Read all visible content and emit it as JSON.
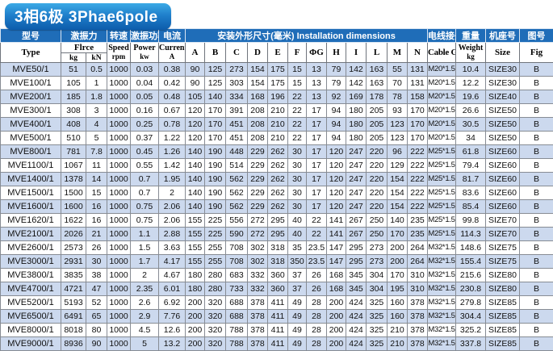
{
  "title": "3相6极 3Phae6pole",
  "colors": {
    "header_blue": "#1f6db8",
    "row_alt_blue": "#ccd9ee",
    "title_gradient_top": "#3caae6",
    "title_gradient_bottom": "#0d5cab",
    "header_text": "#ffffff",
    "body_text": "#101010"
  },
  "table": {
    "header_cn": {
      "model": "型号",
      "force": "激振力",
      "speed": "转速",
      "power": "激振功率",
      "current": "电流",
      "dimensions": "安装外形尺寸(毫米) Installation dimensions",
      "cable_gland": "电线接头",
      "weight": "重量",
      "size": "机座号",
      "fig": "图号"
    },
    "header_en": {
      "model": "Type",
      "force": "Flrce",
      "force_unit_kg": "kg",
      "force_unit_kn": "kN",
      "speed_label": "Speed",
      "speed_unit": "rpm",
      "power_label": "Power",
      "power_unit": "kw",
      "current_label": "Current",
      "current_unit": "A",
      "dim_letters": [
        "A",
        "B",
        "C",
        "D",
        "E",
        "F",
        "ΦG",
        "H",
        "I",
        "L",
        "M",
        "N"
      ],
      "cable_gland": "Cable Gland",
      "weight_label": "Weight",
      "weight_unit": "kg",
      "size": "Size",
      "fig": "Fig"
    },
    "rows": [
      [
        "MVE50/1",
        "51",
        "0.5",
        "1000",
        "0.03",
        "0.38",
        "90",
        "125",
        "273",
        "154",
        "175",
        "15",
        "13",
        "79",
        "142",
        "163",
        "55",
        "131",
        "M20*1.5",
        "10.4",
        "SIZE30",
        "B"
      ],
      [
        "MVE100/1",
        "105",
        "1",
        "1000",
        "0.04",
        "0.42",
        "90",
        "125",
        "303",
        "154",
        "175",
        "15",
        "13",
        "79",
        "142",
        "163",
        "70",
        "131",
        "M20*1.5",
        "12.2",
        "SIZE30",
        "B"
      ],
      [
        "MVE200/1",
        "185",
        "1.8",
        "1000",
        "0.05",
        "0.48",
        "105",
        "140",
        "334",
        "168",
        "196",
        "22",
        "13",
        "92",
        "169",
        "178",
        "78",
        "158",
        "M20*1.5",
        "19.6",
        "SIZE40",
        "B"
      ],
      [
        "MVE300/1",
        "308",
        "3",
        "1000",
        "0.16",
        "0.67",
        "120",
        "170",
        "391",
        "208",
        "210",
        "22",
        "17",
        "94",
        "180",
        "205",
        "93",
        "170",
        "M20*1.5",
        "26.6",
        "SIZE50",
        "B"
      ],
      [
        "MVE400/1",
        "408",
        "4",
        "1000",
        "0.25",
        "0.78",
        "120",
        "170",
        "451",
        "208",
        "210",
        "22",
        "17",
        "94",
        "180",
        "205",
        "123",
        "170",
        "M20*1.5",
        "30.5",
        "SIZE50",
        "B"
      ],
      [
        "MVE500/1",
        "510",
        "5",
        "1000",
        "0.37",
        "1.22",
        "120",
        "170",
        "451",
        "208",
        "210",
        "22",
        "17",
        "94",
        "180",
        "205",
        "123",
        "170",
        "M20*1.5",
        "34",
        "SIZE50",
        "B"
      ],
      [
        "MVE800/1",
        "781",
        "7.8",
        "1000",
        "0.45",
        "1.26",
        "140",
        "190",
        "448",
        "229",
        "262",
        "30",
        "17",
        "120",
        "247",
        "220",
        "96",
        "222",
        "M25*1.5",
        "61.8",
        "SIZE60",
        "B"
      ],
      [
        "MVE1100/1",
        "1067",
        "11",
        "1000",
        "0.55",
        "1.42",
        "140",
        "190",
        "514",
        "229",
        "262",
        "30",
        "17",
        "120",
        "247",
        "220",
        "129",
        "222",
        "M25*1.5",
        "79.4",
        "SIZE60",
        "B"
      ],
      [
        "MVE1400/1",
        "1378",
        "14",
        "1000",
        "0.7",
        "1.95",
        "140",
        "190",
        "562",
        "229",
        "262",
        "30",
        "17",
        "120",
        "247",
        "220",
        "154",
        "222",
        "M25*1.5",
        "81.7",
        "SIZE60",
        "B"
      ],
      [
        "MVE1500/1",
        "1500",
        "15",
        "1000",
        "0.7",
        "2",
        "140",
        "190",
        "562",
        "229",
        "262",
        "30",
        "17",
        "120",
        "247",
        "220",
        "154",
        "222",
        "M25*1.5",
        "83.6",
        "SIZE60",
        "B"
      ],
      [
        "MVE1600/1",
        "1600",
        "16",
        "1000",
        "0.75",
        "2.06",
        "140",
        "190",
        "562",
        "229",
        "262",
        "30",
        "17",
        "120",
        "247",
        "220",
        "154",
        "222",
        "M25*1.5",
        "85.4",
        "SIZE60",
        "B"
      ],
      [
        "MVE1620/1",
        "1622",
        "16",
        "1000",
        "0.75",
        "2.06",
        "155",
        "225",
        "556",
        "272",
        "295",
        "40",
        "22",
        "141",
        "267",
        "250",
        "140",
        "235",
        "M25*1.5",
        "99.8",
        "SIZE70",
        "B"
      ],
      [
        "MVE2100/1",
        "2026",
        "21",
        "1000",
        "1.1",
        "2.88",
        "155",
        "225",
        "590",
        "272",
        "295",
        "40",
        "22",
        "141",
        "267",
        "250",
        "170",
        "235",
        "M25*1.5",
        "114.3",
        "SIZE70",
        "B"
      ],
      [
        "MVE2600/1",
        "2573",
        "26",
        "1000",
        "1.5",
        "3.63",
        "155",
        "255",
        "708",
        "302",
        "318",
        "35",
        "23.5",
        "147",
        "295",
        "273",
        "200",
        "264",
        "M32*1.5",
        "148.6",
        "SIZE75",
        "B"
      ],
      [
        "MVE3000/1",
        "2931",
        "30",
        "1000",
        "1.7",
        "4.17",
        "155",
        "255",
        "708",
        "302",
        "318",
        "350",
        "23.5",
        "147",
        "295",
        "273",
        "200",
        "264",
        "M32*1.5",
        "155.4",
        "SIZE75",
        "B"
      ],
      [
        "MVE3800/1",
        "3835",
        "38",
        "1000",
        "2",
        "4.67",
        "180",
        "280",
        "683",
        "332",
        "360",
        "37",
        "26",
        "168",
        "345",
        "304",
        "170",
        "310",
        "M32*1.5",
        "215.6",
        "SIZE80",
        "B"
      ],
      [
        "MVE4700/1",
        "4721",
        "47",
        "1000",
        "2.35",
        "6.01",
        "180",
        "280",
        "733",
        "332",
        "360",
        "37",
        "26",
        "168",
        "345",
        "304",
        "195",
        "310",
        "M32*1.5",
        "230.8",
        "SIZE80",
        "B"
      ],
      [
        "MVE5200/1",
        "5193",
        "52",
        "1000",
        "2.6",
        "6.92",
        "200",
        "320",
        "688",
        "378",
        "411",
        "49",
        "28",
        "200",
        "424",
        "325",
        "160",
        "378",
        "M32*1.5",
        "279.8",
        "SIZE85",
        "B"
      ],
      [
        "MVE6500/1",
        "6491",
        "65",
        "1000",
        "2.9",
        "7.76",
        "200",
        "320",
        "688",
        "378",
        "411",
        "49",
        "28",
        "200",
        "424",
        "325",
        "160",
        "378",
        "M32*1.5",
        "304.4",
        "SIZE85",
        "B"
      ],
      [
        "MVE8000/1",
        "8018",
        "80",
        "1000",
        "4.5",
        "12.6",
        "200",
        "320",
        "788",
        "378",
        "411",
        "49",
        "28",
        "200",
        "424",
        "325",
        "210",
        "378",
        "M32*1.5",
        "325.2",
        "SIZE85",
        "B"
      ],
      [
        "MVE9000/1",
        "8936",
        "90",
        "1000",
        "5",
        "13.2",
        "200",
        "320",
        "788",
        "378",
        "411",
        "49",
        "28",
        "200",
        "424",
        "325",
        "210",
        "378",
        "M32*1.5",
        "337.8",
        "SIZE85",
        "B"
      ]
    ]
  }
}
